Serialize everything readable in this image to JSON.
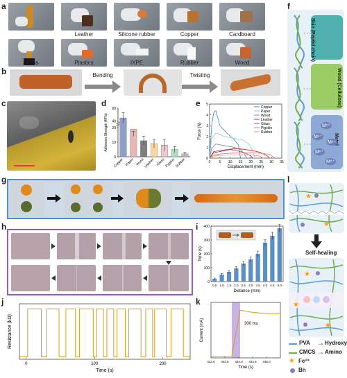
{
  "panel_labels": {
    "a": "a",
    "b": "b",
    "c": "c",
    "d": "d",
    "e": "e",
    "f": "f",
    "g": "g",
    "h": "h",
    "i": "i",
    "j": "j",
    "k": "k",
    "l": "l"
  },
  "panel_a": {
    "materials": [
      "",
      "Leather",
      "Silicone rubber",
      "Copper",
      "Cardboard",
      "Glass",
      "Plastics",
      "IXPE",
      "Rubber",
      "Wood"
    ]
  },
  "panel_b": {
    "steps": [
      "Bending",
      "Twisting"
    ]
  },
  "panel_f": {
    "labels": [
      "Skin (Peptid chain)",
      "Wood (Cellulose)",
      "Metal"
    ],
    "ions": [
      "Mⁿ⁺",
      "Mⁿ⁺",
      "Mⁿ⁺",
      "Mⁿ⁺",
      "Mⁿ⁺"
    ]
  },
  "panel_l": {
    "arrow_label": "Self-healing",
    "legend": [
      {
        "label": "PVA",
        "color": "#5b9bd5",
        "kind": "line"
      },
      {
        "label": "Hydroxy",
        "color": "#7f8c8d",
        "kind": "hook"
      },
      {
        "label": "CMCS",
        "color": "#70ad47",
        "kind": "line"
      },
      {
        "label": "Amino",
        "color": "#5b9bd5",
        "kind": "hook"
      },
      {
        "label": "Fe³⁺",
        "color": "#f39c12",
        "kind": "star"
      },
      {
        "label": "Bn",
        "color": "#8e7cc3",
        "kind": "dot"
      }
    ]
  },
  "panel_k_annotation": "300 ms",
  "chart_data": [
    {
      "id": "d",
      "type": "bar",
      "categories": [
        "Copper",
        "Paper",
        "Wood",
        "Leather",
        "Glass",
        "Pigskin",
        "Rubber"
      ],
      "values": [
        45,
        19,
        11,
        9,
        8,
        5,
        2
      ],
      "errors": [
        8,
        5,
        3,
        3,
        4,
        2,
        1
      ],
      "colors": [
        "#8da0cb",
        "#e6b8b7",
        "#7f7f7f",
        "#fad7a0",
        "#f5c6cb",
        "#a9dfbf",
        "#bdbdbd"
      ],
      "ylabel": "Adhesion Strength (KPa)",
      "y_ticks": [
        0,
        10,
        20,
        40,
        60
      ],
      "y_break": [
        20,
        30
      ],
      "ylim": [
        0,
        60
      ]
    },
    {
      "id": "e",
      "type": "line",
      "xlabel": "Displacement (mm)",
      "ylabel": "Force (N)",
      "xlim": [
        0,
        35
      ],
      "ylim": [
        0,
        5
      ],
      "x_ticks": [
        0,
        5,
        10,
        15,
        20,
        25,
        30,
        35
      ],
      "y_ticks": [
        0,
        1,
        2,
        3,
        4,
        5
      ],
      "series": [
        {
          "name": "Copper",
          "color": "#4a90e2",
          "points": [
            [
              0,
              0
            ],
            [
              1,
              3.0
            ],
            [
              2,
              4.2
            ],
            [
              3,
              4.4
            ],
            [
              5,
              3.0
            ],
            [
              7,
              2.6
            ],
            [
              9,
              2.2
            ],
            [
              12,
              1.7
            ],
            [
              14,
              1.2
            ],
            [
              15,
              0
            ]
          ]
        },
        {
          "name": "Paper",
          "color": "#9fc5e8",
          "points": [
            [
              0,
              0
            ],
            [
              1,
              1.8
            ],
            [
              3,
              2.3
            ],
            [
              5,
              2.2
            ],
            [
              7,
              2.0
            ],
            [
              10,
              1.9
            ],
            [
              13,
              1.8
            ],
            [
              16,
              1.7
            ],
            [
              19,
              1.3
            ],
            [
              21,
              0.6
            ],
            [
              22,
              0
            ]
          ]
        },
        {
          "name": "Wood",
          "color": "#7f8c8d",
          "points": [
            [
              0,
              0
            ],
            [
              1,
              0.9
            ],
            [
              3,
              1.3
            ],
            [
              6,
              1.2
            ],
            [
              9,
              1.1
            ],
            [
              12,
              1.0
            ],
            [
              15,
              0.8
            ],
            [
              17,
              0.4
            ],
            [
              18,
              0
            ]
          ]
        },
        {
          "name": "Leather",
          "color": "#c0392b",
          "points": [
            [
              0,
              0
            ],
            [
              2,
              0.6
            ],
            [
              5,
              0.7
            ],
            [
              9,
              0.8
            ],
            [
              13,
              0.9
            ],
            [
              17,
              0.8
            ],
            [
              21,
              0.7
            ],
            [
              25,
              0.5
            ],
            [
              28,
              0.2
            ],
            [
              29,
              0
            ]
          ]
        },
        {
          "name": "Glass",
          "color": "#8e44ad",
          "points": [
            [
              0,
              0
            ],
            [
              2,
              0.5
            ],
            [
              5,
              0.6
            ],
            [
              10,
              0.8
            ],
            [
              13,
              0.7
            ],
            [
              17,
              0.5
            ],
            [
              20,
              0.2
            ],
            [
              21,
              0
            ]
          ]
        },
        {
          "name": "Pigskin",
          "color": "#d98880",
          "points": [
            [
              0,
              0
            ],
            [
              2,
              0.3
            ],
            [
              6,
              0.4
            ],
            [
              10,
              0.45
            ],
            [
              15,
              0.5
            ],
            [
              20,
              0.5
            ],
            [
              25,
              0.45
            ],
            [
              29,
              0.35
            ],
            [
              31,
              0.1
            ],
            [
              32,
              0
            ]
          ]
        },
        {
          "name": "Rubber",
          "color": "#e59866",
          "points": [
            [
              0,
              0
            ],
            [
              2,
              0.2
            ],
            [
              5,
              0.25
            ],
            [
              10,
              0.3
            ],
            [
              15,
              0.3
            ],
            [
              20,
              0.3
            ],
            [
              24,
              0.2
            ],
            [
              26,
              0
            ]
          ]
        }
      ]
    },
    {
      "id": "i",
      "type": "bar",
      "categories": [
        "0.5",
        "1.0",
        "1.5",
        "2.0",
        "2.5",
        "3.0",
        "3.5",
        "4.0",
        "4.5",
        "5.0"
      ],
      "values": [
        20,
        50,
        70,
        95,
        130,
        160,
        200,
        280,
        330,
        385
      ],
      "errors": [
        5,
        8,
        10,
        12,
        15,
        18,
        20,
        22,
        25,
        28
      ],
      "color": "#5b8fc7",
      "xlabel": "Distance (mm)",
      "ylabel": "Time (s)",
      "ylim": [
        0,
        400
      ],
      "y_ticks": [
        0,
        100,
        200,
        300,
        400
      ]
    },
    {
      "id": "j",
      "type": "line",
      "xlabel": "Time (s)",
      "ylabel": "Resistance (kΩ)",
      "xlim": [
        -10,
        240
      ],
      "ylim": [
        0,
        110
      ],
      "x_ticks": [
        0,
        100,
        200
      ],
      "y_ticks": [],
      "high": 100,
      "low": 5,
      "pulses": [
        [
          2,
          22
        ],
        [
          30,
          48
        ],
        [
          58,
          72
        ],
        [
          78,
          98
        ],
        [
          103,
          113
        ],
        [
          118,
          128
        ],
        [
          133,
          145
        ],
        [
          150,
          168
        ],
        [
          175,
          185
        ],
        [
          188,
          205
        ],
        [
          212,
          230
        ]
      ],
      "color": "#d4a017"
    },
    {
      "id": "k",
      "type": "line",
      "xlabel": "Time (s)",
      "ylabel": "Current (mA)",
      "xlim": [
        433.0,
        435.5
      ],
      "ylim": [
        0,
        1
      ],
      "x_ticks": [
        "433.0",
        "433.5",
        "434.0",
        "434.5",
        "435.0"
      ],
      "x_tick_vals": [
        433.0,
        433.5,
        434.0,
        434.5,
        435.0
      ],
      "points": [
        [
          433.0,
          0.03
        ],
        [
          433.75,
          0.03
        ],
        [
          434.05,
          0.86
        ],
        [
          434.5,
          0.82
        ],
        [
          435.0,
          0.8
        ],
        [
          435.5,
          0.79
        ]
      ],
      "shade": [
        433.75,
        434.05
      ],
      "color": "#d4a017"
    }
  ]
}
